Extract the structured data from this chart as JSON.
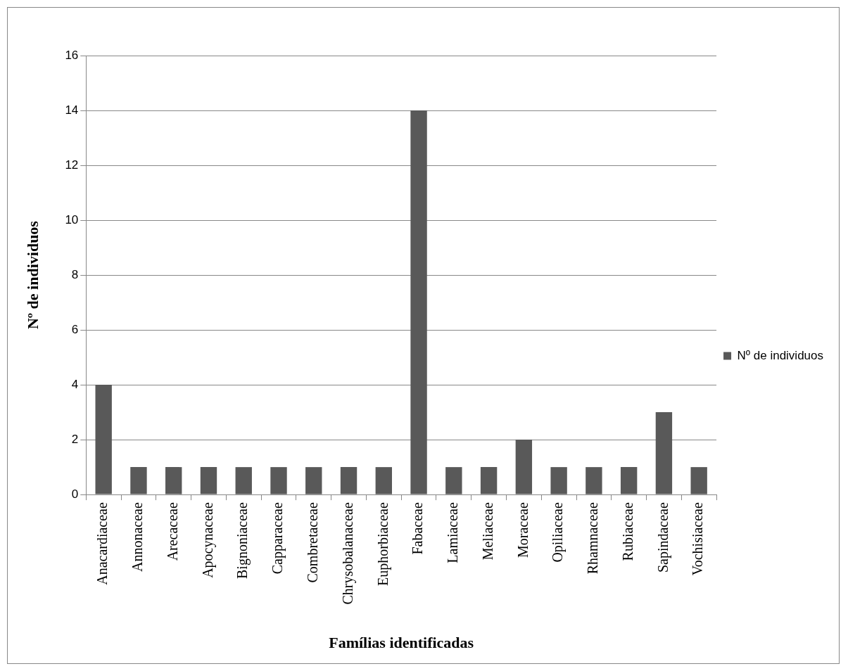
{
  "chart_data": {
    "type": "bar",
    "xlabel": "Famílias identificadas",
    "ylabel": "Nº de individuos",
    "categories": [
      "Anacardiaceae",
      "Annonaceae",
      "Arecaceae",
      "Apocynaceae",
      "Bignoniaceae",
      "Capparaceae",
      "Combretaceae",
      "Chrysobalanaceae",
      "Euphorbiaceae",
      "Fabaceae",
      "Lamiaceae",
      "Meliaceae",
      "Moraceae",
      "Opiliaceae",
      "Rhamnaceae",
      "Rubiaceae",
      "Sapindaceae",
      "Vochisiaceae"
    ],
    "series": [
      {
        "name": "Nº de individuos",
        "color": "#595959",
        "values": [
          4,
          1,
          1,
          1,
          1,
          1,
          1,
          1,
          1,
          14,
          1,
          1,
          2,
          1,
          1,
          1,
          3,
          1
        ]
      }
    ],
    "ylim": [
      0,
      16
    ],
    "yticks": [
      0,
      2,
      4,
      6,
      8,
      10,
      12,
      14,
      16
    ],
    "grid": "y",
    "legend": "right"
  }
}
